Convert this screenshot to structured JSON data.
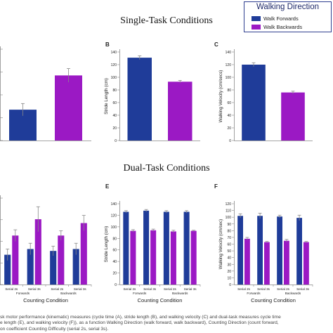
{
  "legend": {
    "title": "Walking Direction",
    "items": [
      {
        "label": "Walk Forwards",
        "color": "#1f3c99"
      },
      {
        "label": "Walk Backwards",
        "color": "#9b19c4"
      }
    ]
  },
  "sections": {
    "single": "Single-Task Conditions",
    "dual": "Dual-Task Conditions"
  },
  "caption": {
    "line1": "sk motor performance (kinematic) measures (cycle time (A), stride length (B), and walking velocity (C) and dual-task measures cycle time",
    "line2": "e length (E), and walking velocity (F)), as a function Walking Direction (walk forward, walk backward), Counting Direction (count forward,",
    "line3": "on coefficient Counting Difficulty (serial 2s, serial 3s)."
  },
  "chart_data": [
    {
      "id": "A",
      "type": "bar",
      "panel_label": "",
      "categories": [
        "Walk Forwards",
        "Walk Backwards"
      ],
      "values": [
        13.5,
        28.5
      ],
      "errors": [
        2.7,
        3.0
      ],
      "colors": [
        "#1f3c99",
        "#9b19c4"
      ],
      "ylim": [
        0,
        40
      ],
      "yticks": [],
      "ylabel": "",
      "xlabel": ""
    },
    {
      "id": "B",
      "type": "bar",
      "panel_label": "B",
      "categories": [
        "Walk Forwards",
        "Walk Backwards"
      ],
      "values": [
        131,
        93
      ],
      "errors": [
        3,
        2
      ],
      "colors": [
        "#1f3c99",
        "#9b19c4"
      ],
      "ylim": [
        0,
        140
      ],
      "yticks": [
        0,
        20,
        40,
        60,
        80,
        100,
        120,
        140
      ],
      "ylabel": "Stride Length (cm)",
      "xlabel": ""
    },
    {
      "id": "C",
      "type": "bar",
      "panel_label": "C",
      "categories": [
        "Walk Forwards",
        "Walk Backwards"
      ],
      "values": [
        120,
        76
      ],
      "errors": [
        3,
        2
      ],
      "colors": [
        "#1f3c99",
        "#9b19c4"
      ],
      "ylim": [
        0,
        140
      ],
      "yticks": [
        0,
        20,
        40,
        60,
        80,
        100,
        120,
        140
      ],
      "ylabel": "Walking Velocity (cm/secs)",
      "xlabel": ""
    },
    {
      "id": "D",
      "type": "bar",
      "panel_label": "",
      "categories": [
        "Serial 2s Forwards",
        "Serial 3s Forwards",
        "Serial 2s Backwards",
        "Serial 3s Backwards"
      ],
      "tick_lines": [
        [
          "Serial 2s",
          "Serial 3s"
        ],
        [
          "Serial 2s",
          "Serial 3s"
        ]
      ],
      "group_labels": [
        "Forwards",
        "Backwards"
      ],
      "series": [
        {
          "name": "Walk Forwards",
          "values": [
            15.5,
            18.5,
            17.5,
            18.5
          ],
          "errors": [
            3,
            3,
            2.5,
            3
          ]
        },
        {
          "name": "Walk Backwards",
          "values": [
            25.5,
            34,
            25.5,
            32
          ],
          "errors": [
            3,
            6.5,
            2.5,
            4
          ]
        }
      ],
      "colors": [
        "#1f3c99",
        "#9b19c4"
      ],
      "ylim": [
        0,
        45
      ],
      "yticks": [],
      "ylabel": "",
      "xlabel": "Counting Condition"
    },
    {
      "id": "E",
      "type": "bar",
      "panel_label": "E",
      "categories": [
        "Serial 2s Forwards",
        "Serial 3s Forwards",
        "Serial 2s Backwards",
        "Serial 3s Backwards"
      ],
      "tick_lines": [
        [
          "Serial 2s",
          "Serial 3s"
        ],
        [
          "Serial 2s",
          "Serial 3s"
        ]
      ],
      "group_labels": [
        "Forwards",
        "Backwards"
      ],
      "series": [
        {
          "name": "Walk Forwards",
          "values": [
            126,
            128,
            126,
            126
          ],
          "errors": [
            2,
            2,
            2,
            2
          ]
        },
        {
          "name": "Walk Backwards",
          "values": [
            93,
            94,
            92,
            93
          ],
          "errors": [
            2,
            2,
            2,
            1
          ]
        }
      ],
      "colors": [
        "#1f3c99",
        "#9b19c4"
      ],
      "ylim": [
        0,
        140
      ],
      "yticks": [
        0,
        20,
        40,
        60,
        80,
        100,
        120,
        140
      ],
      "ylabel": "Stride Length (cm)",
      "xlabel": "Counting Condition"
    },
    {
      "id": "F",
      "type": "bar",
      "panel_label": "F",
      "categories": [
        "Serial 2s Forwards",
        "Serial 3s Forwards",
        "Serial 2s Backwards",
        "Serial 3s Backwards"
      ],
      "tick_lines": [
        [
          "Serial 2s",
          "Serial 3s"
        ],
        [
          "Serial 2s",
          "Serial 3s"
        ]
      ],
      "group_labels": [
        "Forwards",
        "Backwards"
      ],
      "series": [
        {
          "name": "Walk Forwards",
          "values": [
            102,
            102,
            101,
            99
          ],
          "errors": [
            3,
            4,
            2,
            4
          ]
        },
        {
          "name": "Walk Backwards",
          "values": [
            68,
            63,
            65,
            63
          ],
          "errors": [
            2,
            1,
            2,
            1
          ]
        }
      ],
      "colors": [
        "#1f3c99",
        "#9b19c4"
      ],
      "ylim": [
        0,
        120
      ],
      "yticks": [
        0,
        10,
        20,
        30,
        40,
        50,
        60,
        70,
        80,
        90,
        100,
        110,
        120
      ],
      "ylabel": "Walking Velocity (cm/sec)",
      "xlabel": "Counting Condition"
    }
  ]
}
